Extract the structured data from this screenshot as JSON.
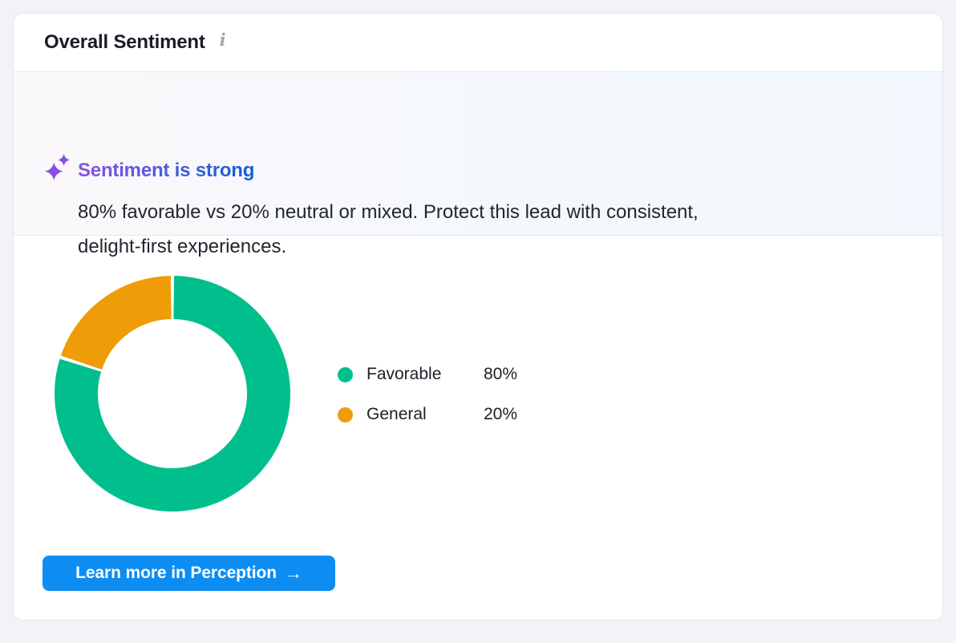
{
  "card": {
    "title": "Overall Sentiment"
  },
  "insight": {
    "heading": "Sentiment is strong",
    "body_lines": [
      "80% favorable vs 20% neutral or mixed. Protect this lead with consistent,",
      "delight-first experiences."
    ],
    "heading_gradient": [
      "#8655E2",
      "#145FD8"
    ],
    "sparkle_color": "#8B4BE4"
  },
  "chart_data": {
    "type": "pie",
    "donut": true,
    "title": "Overall Sentiment",
    "slices": [
      {
        "label": "Favorable",
        "value": 80,
        "display": "80%",
        "color": "#00BF8C"
      },
      {
        "label": "General",
        "value": 20,
        "display": "20%",
        "color": "#EE9D08"
      }
    ],
    "start_angle_deg": -90,
    "direction": "clockwise",
    "legend_position": "right"
  },
  "button": {
    "label": "Learn more in Perception",
    "arrow": "→",
    "color": "#0D8DF2"
  }
}
